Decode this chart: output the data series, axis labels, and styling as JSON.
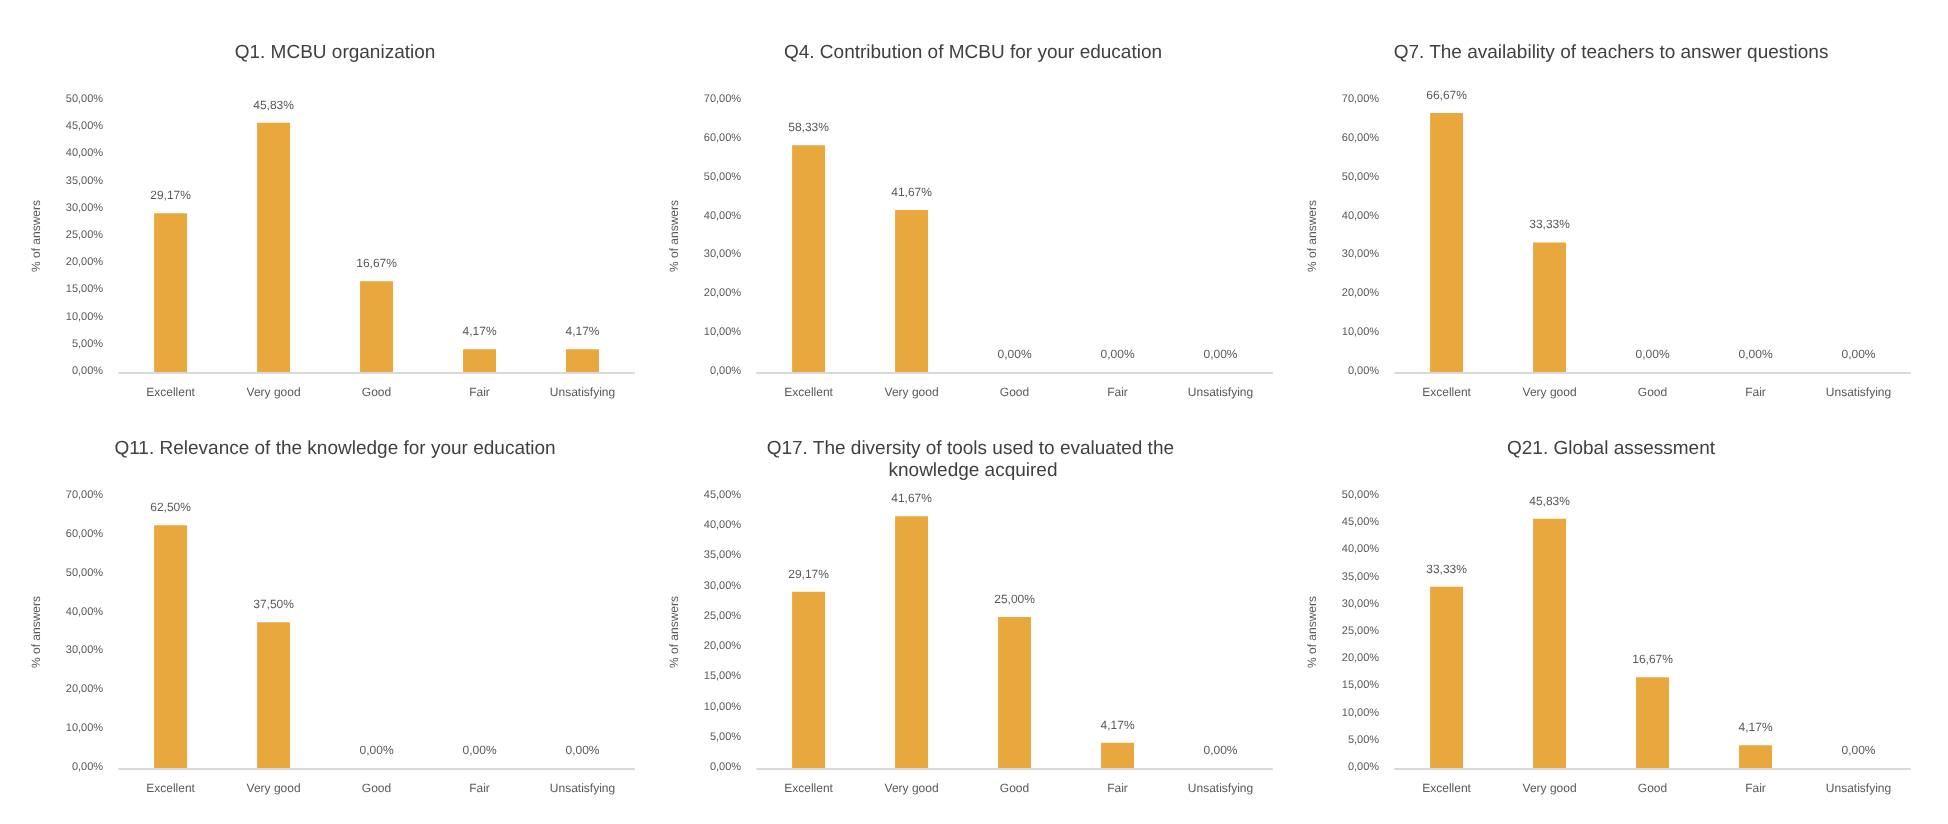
{
  "chart_data": [
    {
      "type": "bar",
      "title": "Q1. MCBU organization",
      "ylabel": "% of answers",
      "categories": [
        "Excellent",
        "Very good",
        "Good",
        "Fair",
        "Unsatisfying"
      ],
      "values": [
        29.17,
        45.83,
        16.67,
        4.17,
        4.17
      ],
      "value_labels": [
        "29,17%",
        "45,83%",
        "16,67%",
        "4,17%",
        "4,17%"
      ],
      "color": "#e8a83e",
      "ylim": [
        0,
        50
      ],
      "yticks": [
        {
          "value": 0,
          "label": "0,00%"
        },
        {
          "value": 5,
          "label": "5,00%"
        },
        {
          "value": 10,
          "label": "10,00%"
        },
        {
          "value": 15,
          "label": "15,00%"
        },
        {
          "value": 20,
          "label": "20,00%"
        },
        {
          "value": 25,
          "label": "25,00%"
        },
        {
          "value": 30,
          "label": "30,00%"
        },
        {
          "value": 35,
          "label": "35,00%"
        },
        {
          "value": 40,
          "label": "40,00%"
        },
        {
          "value": 45,
          "label": "45,00%"
        },
        {
          "value": 50,
          "label": "50,00%"
        }
      ],
      "grid": false
    },
    {
      "type": "bar",
      "title": "Q4. Contribution of MCBU for your education",
      "ylabel": "% of answers",
      "categories": [
        "Excellent",
        "Very good",
        "Good",
        "Fair",
        "Unsatisfying"
      ],
      "values": [
        58.33,
        41.67,
        0,
        0,
        0
      ],
      "value_labels": [
        "58,33%",
        "41,67%",
        "0,00%",
        "0,00%",
        "0,00%"
      ],
      "color": "#e8a83e",
      "ylim": [
        0,
        70
      ],
      "yticks": [
        {
          "value": 0,
          "label": "0,00%"
        },
        {
          "value": 10,
          "label": "10,00%"
        },
        {
          "value": 20,
          "label": "20,00%"
        },
        {
          "value": 30,
          "label": "30,00%"
        },
        {
          "value": 40,
          "label": "40,00%"
        },
        {
          "value": 50,
          "label": "50,00%"
        },
        {
          "value": 60,
          "label": "60,00%"
        },
        {
          "value": 70,
          "label": "70,00%"
        }
      ],
      "grid": false
    },
    {
      "type": "bar",
      "title": "Q7. The availability of teachers to answer questions",
      "ylabel": "% of answers",
      "categories": [
        "Excellent",
        "Very good",
        "Good",
        "Fair",
        "Unsatisfying"
      ],
      "values": [
        66.67,
        33.33,
        0,
        0,
        0
      ],
      "value_labels": [
        "66,67%",
        "33,33%",
        "0,00%",
        "0,00%",
        "0,00%"
      ],
      "color": "#e8a83e",
      "ylim": [
        0,
        70
      ],
      "yticks": [
        {
          "value": 0,
          "label": "0,00%"
        },
        {
          "value": 10,
          "label": "10,00%"
        },
        {
          "value": 20,
          "label": "20,00%"
        },
        {
          "value": 30,
          "label": "30,00%"
        },
        {
          "value": 40,
          "label": "40,00%"
        },
        {
          "value": 50,
          "label": "50,00%"
        },
        {
          "value": 60,
          "label": "60,00%"
        },
        {
          "value": 70,
          "label": "70,00%"
        }
      ],
      "grid": false
    },
    {
      "type": "bar",
      "title": "Q11. Relevance of the knowledge for your education",
      "ylabel": "% of answers",
      "categories": [
        "Excellent",
        "Very good",
        "Good",
        "Fair",
        "Unsatisfying"
      ],
      "values": [
        62.5,
        37.5,
        0,
        0,
        0
      ],
      "value_labels": [
        "62,50%",
        "37,50%",
        "0,00%",
        "0,00%",
        "0,00%"
      ],
      "color": "#e8a83e",
      "ylim": [
        0,
        70
      ],
      "yticks": [
        {
          "value": 0,
          "label": "0,00%"
        },
        {
          "value": 10,
          "label": "10,00%"
        },
        {
          "value": 20,
          "label": "20,00%"
        },
        {
          "value": 30,
          "label": "30,00%"
        },
        {
          "value": 40,
          "label": "40,00%"
        },
        {
          "value": 50,
          "label": "50,00%"
        },
        {
          "value": 60,
          "label": "60,00%"
        },
        {
          "value": 70,
          "label": "70,00%"
        }
      ],
      "grid": false
    },
    {
      "type": "bar",
      "title": "Q17. The diversity of tools used to evaluated the knowledge acquired",
      "ylabel": "% of answers",
      "categories": [
        "Excellent",
        "Very good",
        "Good",
        "Fair",
        "Unsatisfying"
      ],
      "values": [
        29.17,
        41.67,
        25,
        4.17,
        0
      ],
      "value_labels": [
        "29,17%",
        "41,67%",
        "25,00%",
        "4,17%",
        "0,00%"
      ],
      "color": "#e8a83e",
      "ylim": [
        0,
        45
      ],
      "yticks": [
        {
          "value": 0,
          "label": "0,00%"
        },
        {
          "value": 5,
          "label": "5,00%"
        },
        {
          "value": 10,
          "label": "10,00%"
        },
        {
          "value": 15,
          "label": "15,00%"
        },
        {
          "value": 20,
          "label": "20,00%"
        },
        {
          "value": 25,
          "label": "25,00%"
        },
        {
          "value": 30,
          "label": "30,00%"
        },
        {
          "value": 35,
          "label": "35,00%"
        },
        {
          "value": 40,
          "label": "40,00%"
        },
        {
          "value": 45,
          "label": "45,00%"
        }
      ],
      "grid": false
    },
    {
      "type": "bar",
      "title": "Q21. Global assessment",
      "ylabel": "% of answers",
      "categories": [
        "Excellent",
        "Very good",
        "Good",
        "Fair",
        "Unsatisfying"
      ],
      "values": [
        33.33,
        45.83,
        16.67,
        4.17,
        0
      ],
      "value_labels": [
        "33,33%",
        "45,83%",
        "16,67%",
        "4,17%",
        "0,00%"
      ],
      "color": "#e8a83e",
      "ylim": [
        0,
        50
      ],
      "yticks": [
        {
          "value": 0,
          "label": "0,00%"
        },
        {
          "value": 5,
          "label": "5,00%"
        },
        {
          "value": 10,
          "label": "10,00%"
        },
        {
          "value": 15,
          "label": "15,00%"
        },
        {
          "value": 20,
          "label": "20,00%"
        },
        {
          "value": 25,
          "label": "25,00%"
        },
        {
          "value": 30,
          "label": "30,00%"
        },
        {
          "value": 35,
          "label": "35,00%"
        },
        {
          "value": 40,
          "label": "40,00%"
        },
        {
          "value": 45,
          "label": "45,00%"
        },
        {
          "value": 50,
          "label": "50,00%"
        }
      ],
      "grid": false
    }
  ]
}
